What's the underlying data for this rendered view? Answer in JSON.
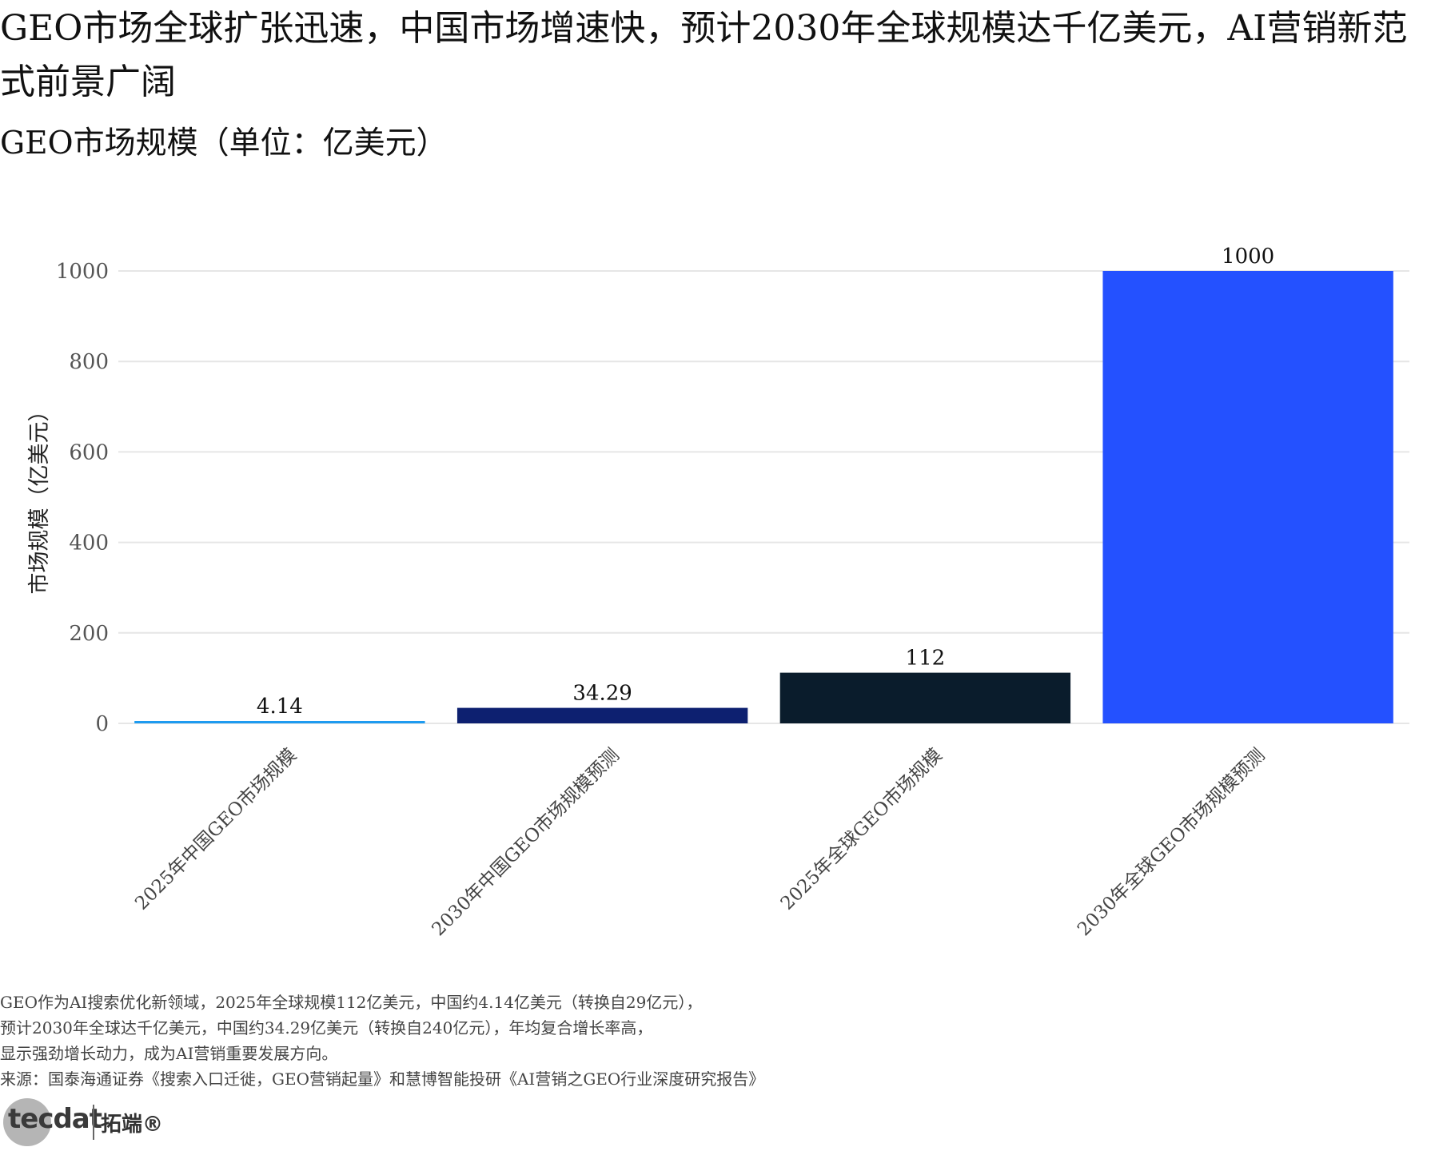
{
  "title": "GEO市场全球扩张迅速，中国市场增速快，预计2030年全球规模达千亿美元，AI营销新范式前景广阔",
  "subtitle": "GEO市场规模（单位：亿美元）",
  "chart_data": {
    "type": "bar",
    "categories": [
      "2025年中国GEO市场规模",
      "2030年中国GEO市场规模预测",
      "2025年全球GEO市场规模",
      "2030年全球GEO市场规模预测"
    ],
    "values": [
      4.14,
      34.29,
      112,
      1000
    ],
    "data_labels": [
      "4.14",
      "34.29",
      "112",
      "1000"
    ],
    "colors": [
      "#1e9bf0",
      "#0d2070",
      "#0a1c2c",
      "#2451ff"
    ],
    "ylabel": "市场规模（亿美元）",
    "xlabel": "",
    "ylim": [
      0,
      1000
    ],
    "yticks": [
      0,
      200,
      400,
      600,
      800,
      1000
    ],
    "grid": true,
    "legend": "none"
  },
  "footnote": {
    "lines": [
      "GEO作为AI搜索优化新领域，2025年全球规模112亿美元，中国约4.14亿美元（转换自29亿元），",
      "预计2030年全球达千亿美元，中国约34.29亿美元（转换自240亿元），年均复合增长率高，",
      "显示强劲增长动力，成为AI营销重要发展方向。",
      "来源：国泰海通证券《搜索入口迁徙，GEO营销起量》和慧博智能投研《AI营销之GEO行业深度研究报告》"
    ]
  },
  "logo": {
    "word": "tecdat",
    "cn": "拓端®"
  }
}
